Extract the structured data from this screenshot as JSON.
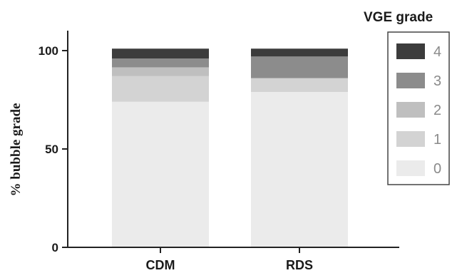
{
  "chart_data": {
    "type": "bar",
    "stacked": true,
    "categories": [
      "CDM",
      "RDS"
    ],
    "ylabel": "% bubble grade",
    "xlabel": "",
    "ylim": [
      0,
      110
    ],
    "yticks": [
      "0",
      "50",
      "100"
    ],
    "legend_title": "VGE grade",
    "legend_position": "right",
    "series": [
      {
        "name": "0",
        "values": [
          74,
          79
        ],
        "color": "#ebebeb"
      },
      {
        "name": "1",
        "values": [
          13,
          7
        ],
        "color": "#d3d3d3"
      },
      {
        "name": "2",
        "values": [
          4.5,
          0
        ],
        "color": "#bfbfbf"
      },
      {
        "name": "3",
        "values": [
          4.5,
          11
        ],
        "color": "#8c8c8c"
      },
      {
        "name": "4",
        "values": [
          5,
          4
        ],
        "color": "#3c3c3c"
      }
    ]
  }
}
